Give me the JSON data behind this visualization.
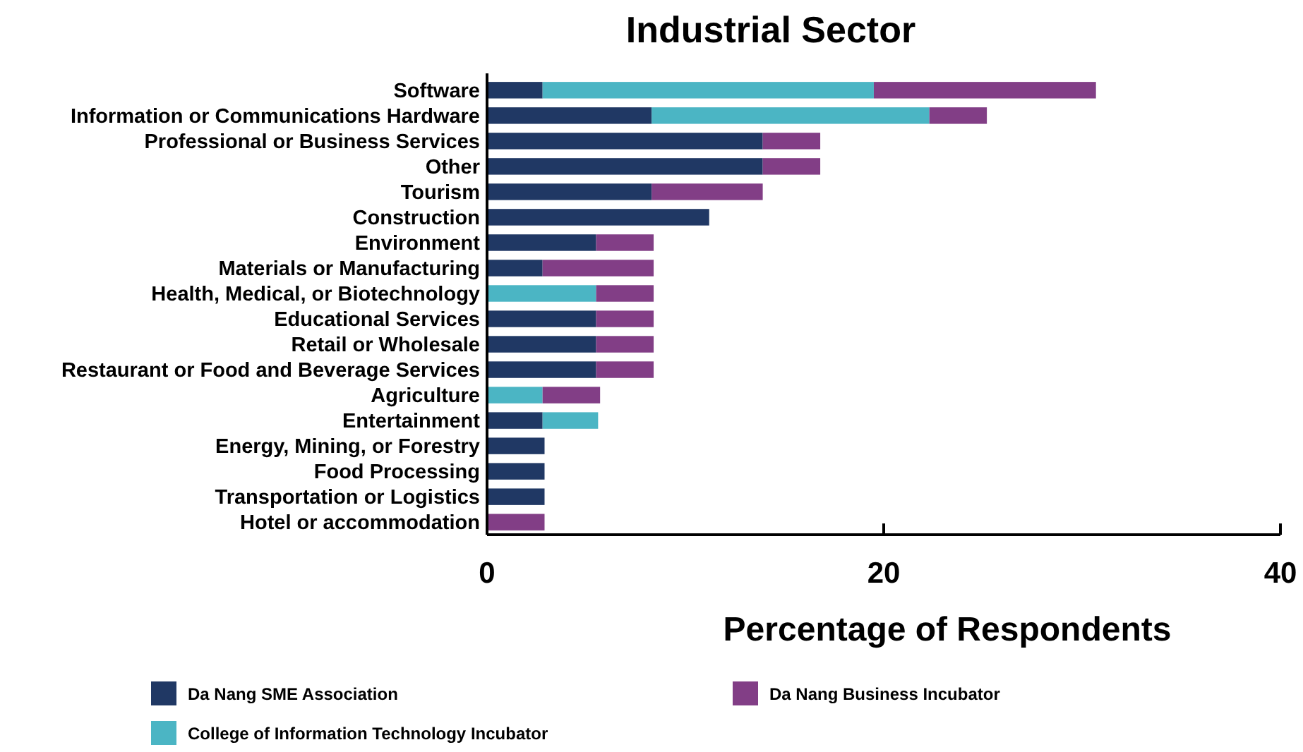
{
  "chart_data": {
    "type": "bar",
    "orientation": "horizontal",
    "stacked": true,
    "title": "Industrial Sector",
    "xlabel": "Percentage of Respondents",
    "categories": [
      "Software",
      "Information or Communications Hardware",
      "Professional or Business Services",
      "Other",
      "Tourism",
      "Construction",
      "Environment",
      "Materials or Manufacturing",
      "Health, Medical, or Biotechnology",
      "Educational Services",
      "Retail or Wholesale",
      "Restaurant or Food and Beverage Services",
      "Agriculture",
      "Entertainment",
      "Energy, Mining, or Forestry",
      "Food Processing",
      "Transportation or Logistics",
      "Hotel or accommodation"
    ],
    "series": [
      {
        "name": "Da Nang SME Association",
        "color": "#203864",
        "values": [
          2.8,
          8.3,
          13.9,
          13.9,
          8.3,
          11.2,
          5.5,
          2.8,
          null,
          5.5,
          5.5,
          5.5,
          null,
          2.8,
          2.9,
          2.9,
          2.9,
          null
        ]
      },
      {
        "name": "College of Information Technology Incubator",
        "color": "#4bb5c4",
        "values": [
          16.7,
          14.0,
          null,
          null,
          null,
          null,
          null,
          null,
          5.5,
          null,
          null,
          null,
          2.8,
          2.8,
          null,
          null,
          null,
          null
        ]
      },
      {
        "name": "Da Nang Business Incubator",
        "color": "#823e86",
        "values": [
          11.2,
          2.9,
          2.9,
          2.9,
          5.6,
          null,
          2.9,
          5.6,
          2.9,
          2.9,
          2.9,
          2.9,
          2.9,
          null,
          null,
          null,
          null,
          2.9
        ]
      }
    ],
    "xlim": [
      0,
      40
    ],
    "xticks": [
      0,
      20,
      40
    ],
    "legend": "bottom"
  }
}
